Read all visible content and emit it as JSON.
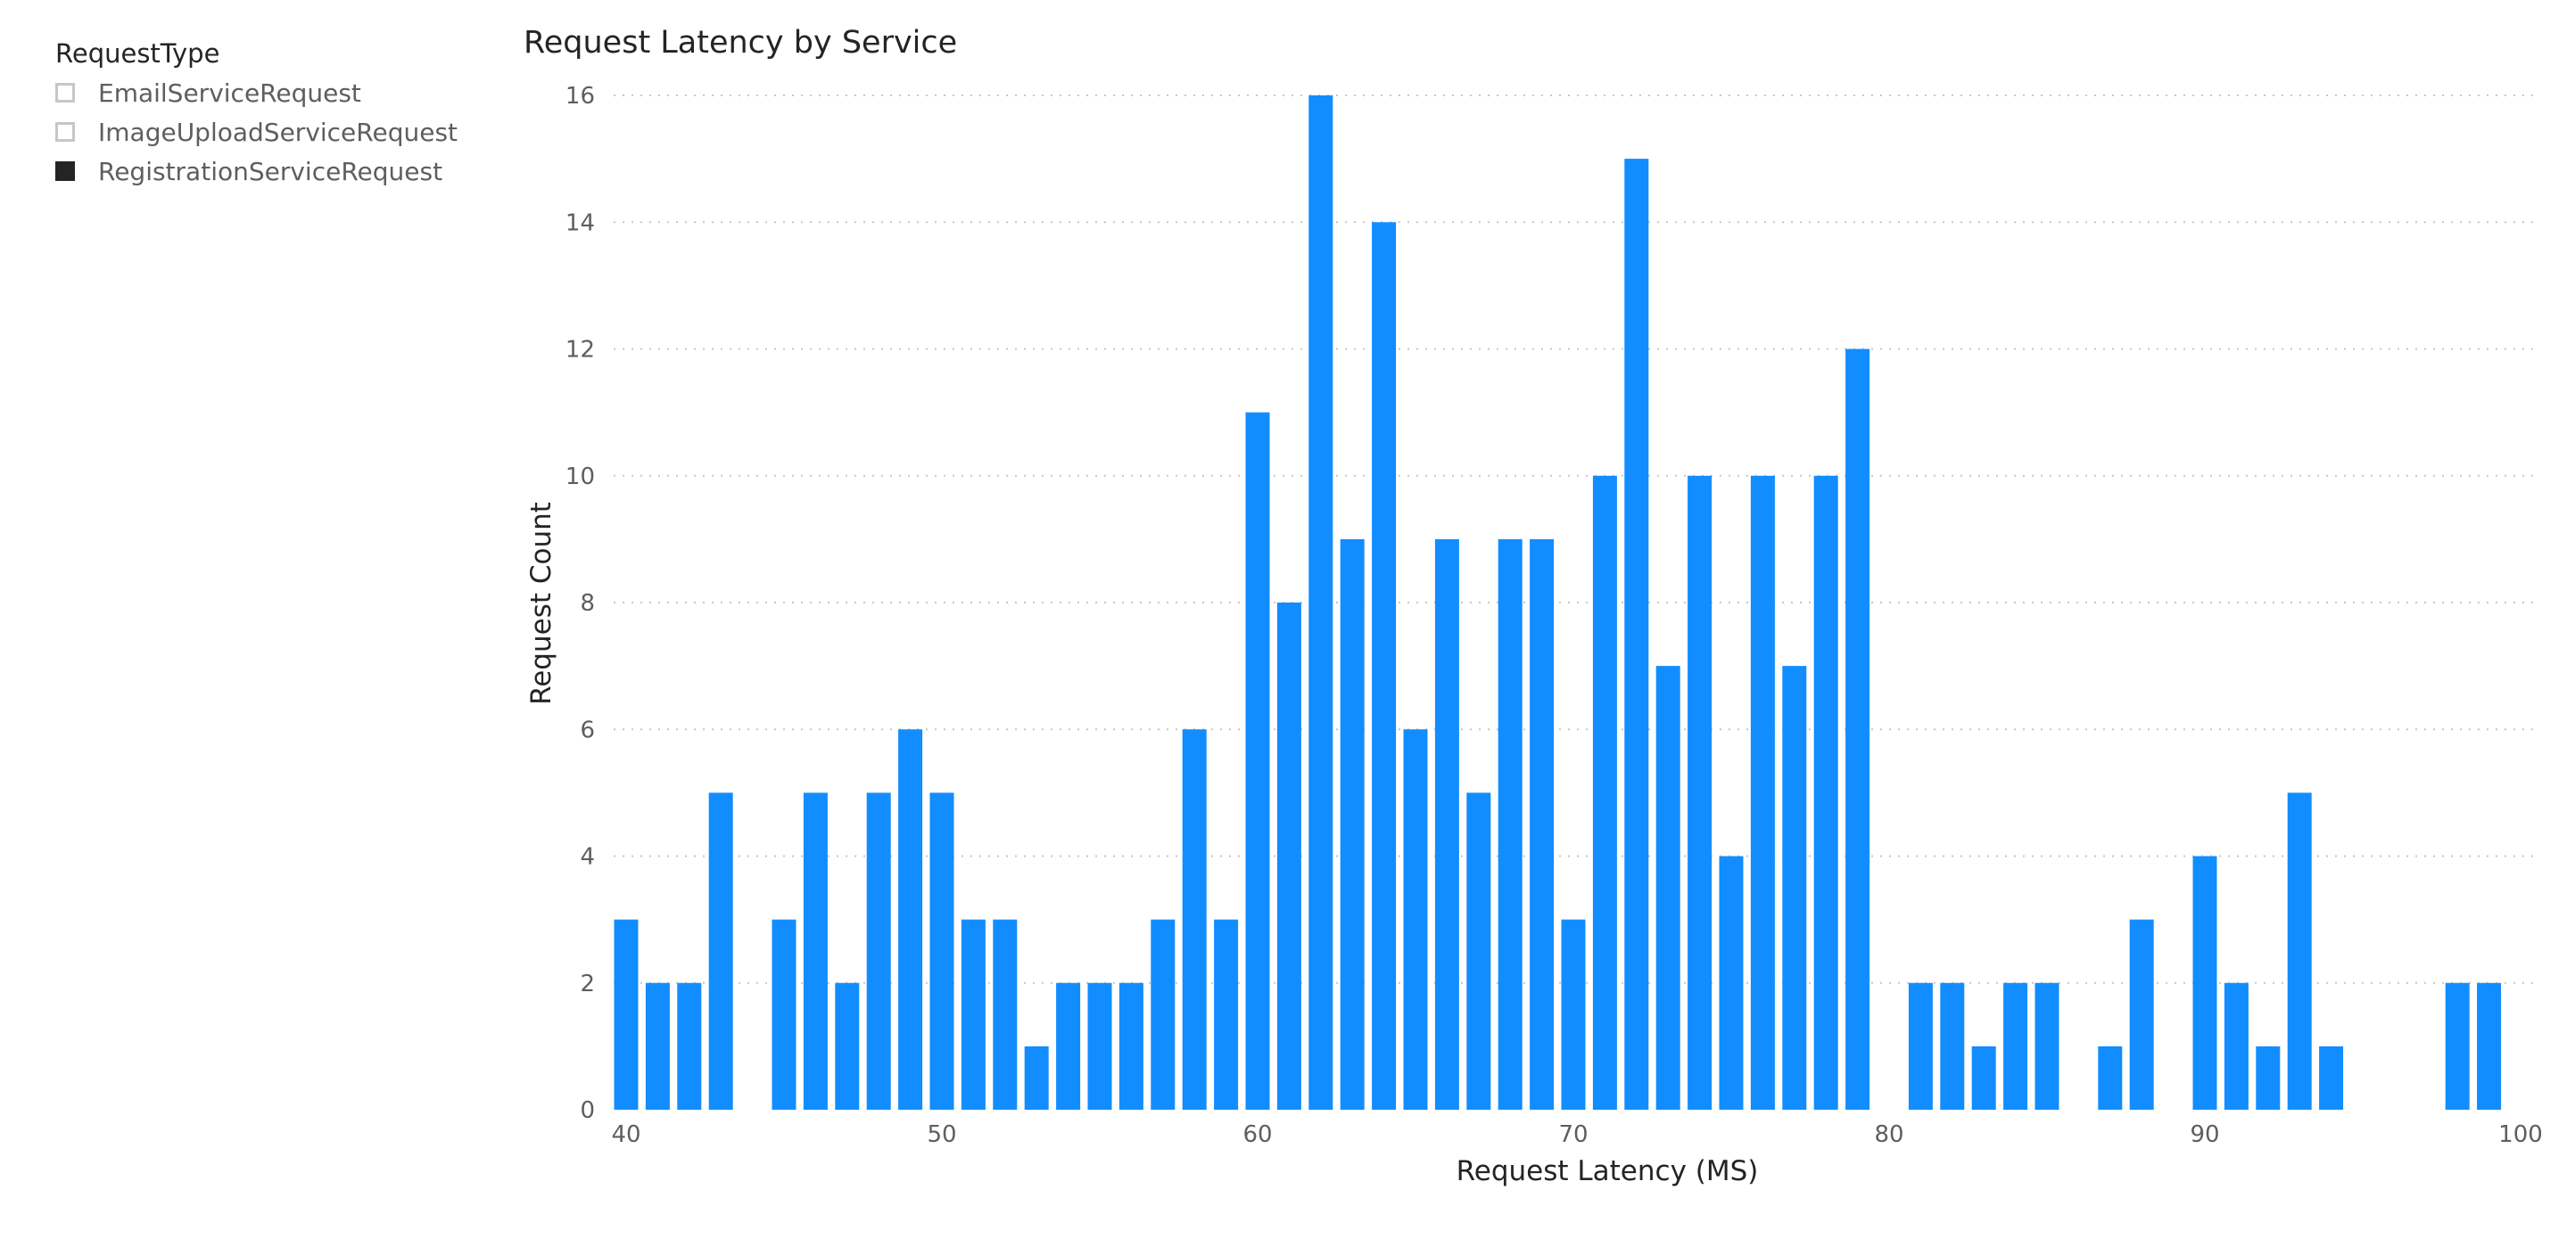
{
  "slicer": {
    "title": "RequestType",
    "items": [
      {
        "label": "EmailServiceRequest",
        "selected": false
      },
      {
        "label": "ImageUploadServiceRequest",
        "selected": false
      },
      {
        "label": "RegistrationServiceRequest",
        "selected": true
      }
    ]
  },
  "colors": {
    "bar": "#118DFF",
    "gridline": "#c8c6c4",
    "tick_text": "#605e5c",
    "axis_title": "#252423",
    "checkbox_selected": "#252423",
    "checkbox_empty_border": "#c8c6c4"
  },
  "chart_data": {
    "type": "bar",
    "title": "Request Latency by Service",
    "xlabel": "Request Latency (MS)",
    "ylabel": "Request Count",
    "xlim": [
      40,
      100
    ],
    "ylim": [
      0,
      16
    ],
    "x_ticks": [
      40,
      50,
      60,
      70,
      80,
      90,
      100
    ],
    "y_ticks": [
      0,
      2,
      4,
      6,
      8,
      10,
      12,
      14,
      16
    ],
    "grid": "horizontal-dotted",
    "x": [
      40,
      41,
      42,
      43,
      45,
      46,
      47,
      48,
      49,
      50,
      51,
      52,
      53,
      54,
      55,
      56,
      57,
      58,
      59,
      60,
      61,
      62,
      63,
      64,
      65,
      66,
      67,
      68,
      69,
      70,
      71,
      72,
      73,
      74,
      75,
      76,
      77,
      78,
      79,
      81,
      82,
      83,
      84,
      85,
      87,
      88,
      90,
      91,
      92,
      93,
      94,
      98,
      99
    ],
    "values": [
      3,
      2,
      2,
      5,
      3,
      5,
      2,
      5,
      6,
      5,
      3,
      3,
      1,
      2,
      2,
      2,
      3,
      6,
      3,
      11,
      8,
      16,
      9,
      14,
      6,
      9,
      5,
      9,
      9,
      3,
      10,
      15,
      7,
      10,
      4,
      10,
      7,
      10,
      12,
      2,
      2,
      1,
      2,
      2,
      1,
      3,
      4,
      2,
      1,
      5,
      1,
      2,
      2
    ]
  }
}
